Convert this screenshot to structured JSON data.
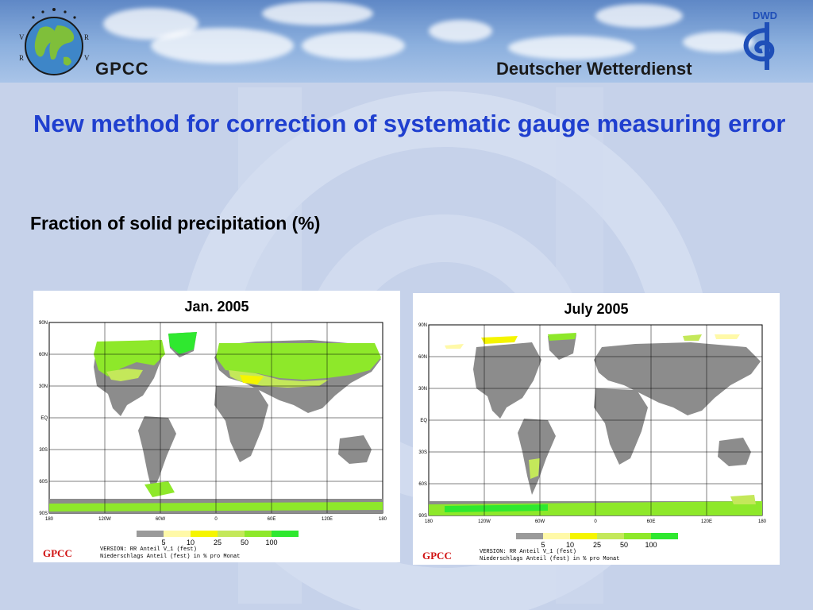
{
  "header": {
    "left_logo_text": "GPCC",
    "right_logo_text": "Deutscher Wetterdienst",
    "dwd_badge": "DWD",
    "logo_letters": [
      "V",
      "R",
      "R",
      "V"
    ]
  },
  "slide": {
    "title": "New method for correction of systematic gauge measuring error",
    "subtitle": "Fraction of solid precipitation (%)"
  },
  "maps": [
    {
      "title": "Jan. 2005",
      "lat_labels": [
        "90N",
        "60N",
        "30N",
        "EQ",
        "30S",
        "60S",
        "90S"
      ],
      "lon_labels": [
        "180",
        "120W",
        "60W",
        "0",
        "60E",
        "120E",
        "180"
      ],
      "legend_labels": [
        "5",
        "10",
        "25",
        "50",
        "100"
      ],
      "footer_logo": "GPCC",
      "version_line1": "VERSION: RR Anteil V_1 (fest)",
      "version_line2": "Niederschlags Anteil (fest) in % pro Monat"
    },
    {
      "title": "July 2005",
      "lat_labels": [
        "90N",
        "60N",
        "30N",
        "EQ",
        "30S",
        "60S",
        "90S"
      ],
      "lon_labels": [
        "180",
        "120W",
        "60W",
        "0",
        "60E",
        "120E",
        "180"
      ],
      "legend_labels": [
        "5",
        "10",
        "25",
        "50",
        "100"
      ],
      "footer_logo": "GPCC",
      "version_line1": "VERSION: RR Anteil V_1 (fest)",
      "version_line2": "Niederschlags Anteil (fest) in % pro Monat"
    }
  ],
  "colors": {
    "title": "#1f3fcf",
    "land_gray": "#8c8c8c",
    "legend": [
      "#9a9a9a",
      "#fff9a8",
      "#f5f500",
      "#c4e85a",
      "#8ee82a",
      "#2fe82f"
    ]
  }
}
